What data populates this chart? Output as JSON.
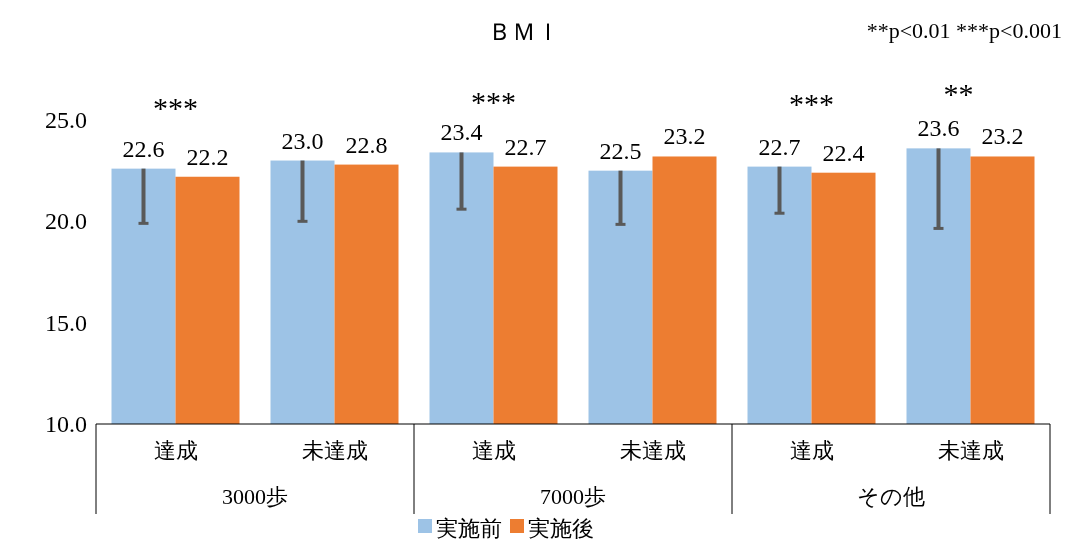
{
  "chart_data": {
    "type": "bar",
    "title": "ＢＭＩ",
    "categories": [
      "達成",
      "未達成",
      "達成",
      "未達成",
      "達成",
      "未達成"
    ],
    "series": [
      {
        "name": "実施前",
        "color": "#9dc3e6",
        "values": [
          22.6,
          23.0,
          23.4,
          22.5,
          22.7,
          23.6
        ],
        "value_labels": [
          "22.6",
          "23.0",
          "23.4",
          "22.5",
          "22.7",
          "23.6"
        ],
        "errors": [
          [
            19.9,
            22.6
          ],
          [
            20.0,
            23.0
          ],
          [
            20.6,
            23.4
          ],
          [
            19.85,
            22.5
          ],
          [
            20.4,
            22.7
          ],
          [
            19.65,
            23.6
          ]
        ]
      },
      {
        "name": "実施後",
        "color": "#ed7d31",
        "values": [
          22.2,
          22.8,
          22.7,
          23.2,
          22.4,
          23.2
        ],
        "value_labels": [
          "22.2",
          "22.8",
          "22.7",
          "23.2",
          "22.4",
          "23.2"
        ]
      }
    ],
    "ylim": [
      10,
      25
    ],
    "yticks": [
      {
        "value": 10,
        "label": "10.0"
      },
      {
        "value": 15,
        "label": "15.0"
      },
      {
        "value": 20,
        "label": "20.0"
      },
      {
        "value": 25,
        "label": "25.0"
      }
    ],
    "grid": false,
    "legend": "bottom",
    "annotations": [
      "**p<0.01   ***p<0.001",
      "3000歩",
      "7000歩",
      "その他",
      "***",
      "***",
      "***",
      "**"
    ]
  }
}
